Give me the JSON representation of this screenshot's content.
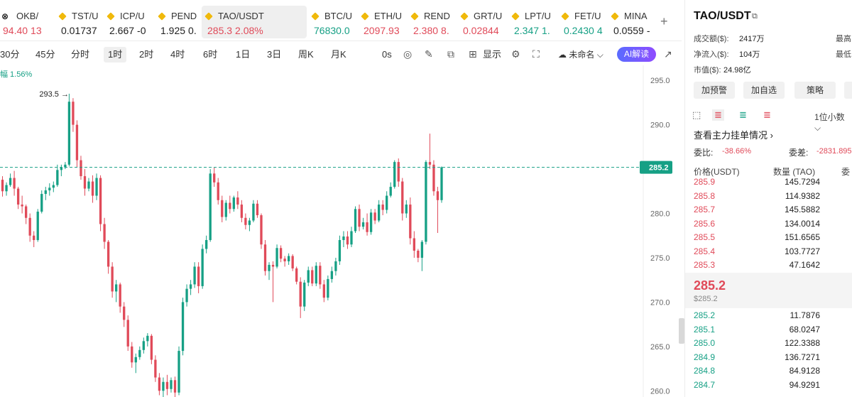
{
  "tickers": [
    {
      "name": "OKB/",
      "price": "94.40",
      "change": "13",
      "price_color": "down",
      "icon": "okx-icon",
      "left": -4,
      "width": 80,
      "clip": true
    },
    {
      "name": "TST/U",
      "price": "0.01737",
      "change": "",
      "price_color": "neutral",
      "icon": "binance-icon"
    },
    {
      "name": "ICP/U",
      "price": "2.667",
      "change": "-0",
      "price_color": "neutral",
      "icon": "binance-icon"
    },
    {
      "name": "PEND",
      "price": "1.925",
      "change": "0.",
      "price_color": "neutral",
      "icon": "binance-icon"
    },
    {
      "name": "TAO/USDT",
      "price": "285.3",
      "change": "2.08%",
      "price_color": "down",
      "icon": "binance-icon"
    },
    {
      "name": "BTC/U",
      "price": "76830.0",
      "change": "",
      "price_color": "up",
      "icon": "binance-icon"
    },
    {
      "name": "ETH/U",
      "price": "2097.93",
      "change": "",
      "price_color": "down",
      "icon": "binance-icon"
    },
    {
      "name": "REND",
      "price": "2.380",
      "change": "8.",
      "price_color": "down",
      "icon": "binance-icon"
    },
    {
      "name": "GRT/U",
      "price": "0.02844",
      "change": "",
      "price_color": "down",
      "icon": "binance-icon"
    },
    {
      "name": "LPT/U",
      "price": "2.347",
      "change": "1.",
      "price_color": "up",
      "icon": "binance-icon"
    },
    {
      "name": "FET/U",
      "price": "0.2430",
      "change": "4",
      "price_color": "up",
      "icon": "binance-icon"
    },
    {
      "name": "MINA",
      "price": "0.0559",
      "change": "-",
      "price_color": "neutral",
      "icon": "binance-icon"
    }
  ],
  "ticker_add": "+",
  "timeframes": [
    "30分",
    "45分",
    "分时",
    "1时",
    "2时",
    "4时",
    "6时",
    "1日",
    "3日",
    "周K",
    "月K"
  ],
  "active_timeframe": "1时",
  "toolbar": {
    "interval": "0s",
    "display": "显示",
    "unnamed": "未命名",
    "ai": "AI解读"
  },
  "change_label": "幅 1.56%",
  "chart_data": {
    "type": "candlestick",
    "y_ticks": [
      "295.0",
      "290.0",
      "285.0",
      "280.0",
      "275.0",
      "270.0",
      "265.0",
      "260.0"
    ],
    "ylim": [
      259.3,
      296.7
    ],
    "current_price": "285.2",
    "high_marker": "293.5",
    "candles": [
      [
        284.0,
        284.5,
        283.0,
        283.8
      ],
      [
        283.8,
        284.2,
        281.9,
        282.5
      ],
      [
        282.5,
        283.5,
        282.0,
        283.2
      ],
      [
        283.2,
        284.5,
        283.0,
        284.0
      ],
      [
        284.0,
        284.8,
        282.0,
        282.8
      ],
      [
        282.8,
        283.0,
        280.5,
        281.0
      ],
      [
        281.0,
        282.0,
        280.0,
        280.8
      ],
      [
        280.8,
        281.0,
        278.8,
        279.5
      ],
      [
        279.5,
        280.0,
        276.8,
        277.5
      ],
      [
        277.5,
        278.0,
        276.2,
        277.0
      ],
      [
        277.0,
        280.5,
        276.8,
        280.2
      ],
      [
        280.2,
        282.6,
        280.0,
        282.2
      ],
      [
        282.2,
        283.0,
        281.5,
        282.6
      ],
      [
        282.6,
        283.4,
        282.0,
        282.9
      ],
      [
        282.9,
        283.6,
        282.4,
        283.2
      ],
      [
        283.2,
        285.5,
        283.0,
        284.9
      ],
      [
        284.9,
        285.5,
        284.2,
        285.2
      ],
      [
        285.2,
        285.8,
        285.0,
        285.5
      ],
      [
        285.5,
        293.5,
        285.3,
        292.6
      ],
      [
        292.6,
        293.0,
        289.2,
        290.0
      ],
      [
        290.0,
        290.5,
        285.2,
        286.0
      ],
      [
        286.0,
        286.5,
        283.8,
        284.2
      ],
      [
        284.2,
        285.0,
        282.0,
        282.8
      ],
      [
        282.8,
        284.0,
        282.5,
        283.6
      ],
      [
        283.6,
        284.3,
        281.2,
        282.0
      ],
      [
        282.0,
        284.5,
        281.5,
        284.0
      ],
      [
        284.0,
        284.3,
        278.0,
        278.8
      ],
      [
        278.8,
        279.5,
        276.0,
        276.8
      ],
      [
        276.8,
        277.0,
        273.2,
        274.0
      ],
      [
        274.0,
        274.5,
        270.5,
        271.2
      ],
      [
        271.2,
        272.5,
        270.0,
        272.0
      ],
      [
        272.0,
        272.2,
        268.8,
        269.5
      ],
      [
        269.5,
        270.0,
        267.2,
        268.0
      ],
      [
        268.0,
        268.5,
        264.5,
        265.0
      ],
      [
        265.0,
        265.5,
        262.6,
        263.2
      ],
      [
        263.2,
        264.2,
        262.0,
        263.8
      ],
      [
        263.8,
        265.0,
        263.5,
        264.6
      ],
      [
        264.6,
        266.0,
        264.2,
        265.6
      ],
      [
        265.6,
        266.5,
        265.0,
        266.2
      ],
      [
        266.2,
        266.4,
        263.0,
        263.5
      ],
      [
        263.5,
        264.0,
        261.0,
        261.5
      ],
      [
        261.5,
        262.0,
        259.5,
        260.0
      ],
      [
        260.0,
        261.5,
        259.2,
        261.0
      ],
      [
        261.0,
        261.8,
        259.5,
        260.2
      ],
      [
        260.2,
        261.5,
        259.8,
        261.2
      ],
      [
        261.2,
        261.6,
        259.3,
        259.8
      ],
      [
        259.8,
        265.0,
        259.5,
        264.5
      ],
      [
        264.5,
        270.5,
        264.0,
        270.0
      ],
      [
        270.0,
        272.0,
        269.5,
        271.5
      ],
      [
        271.5,
        272.5,
        270.8,
        272.0
      ],
      [
        272.0,
        274.5,
        271.6,
        274.0
      ],
      [
        274.0,
        274.5,
        271.0,
        271.8
      ],
      [
        271.8,
        276.5,
        271.5,
        276.0
      ],
      [
        276.0,
        277.5,
        275.5,
        277.0
      ],
      [
        277.0,
        285.0,
        276.8,
        284.5
      ],
      [
        284.5,
        285.2,
        283.0,
        283.5
      ],
      [
        283.5,
        284.0,
        281.0,
        281.5
      ],
      [
        281.5,
        282.0,
        279.0,
        279.6
      ],
      [
        279.6,
        281.5,
        279.2,
        281.2
      ],
      [
        281.2,
        282.0,
        280.0,
        280.5
      ],
      [
        280.5,
        282.0,
        280.2,
        281.8
      ],
      [
        281.8,
        282.5,
        280.5,
        281.0
      ],
      [
        281.0,
        281.5,
        279.0,
        279.5
      ],
      [
        279.5,
        280.0,
        278.2,
        278.7
      ],
      [
        278.7,
        279.5,
        278.0,
        279.2
      ],
      [
        279.2,
        281.5,
        279.0,
        281.1
      ],
      [
        281.1,
        281.5,
        279.5,
        279.8
      ],
      [
        279.8,
        280.0,
        276.0,
        276.5
      ],
      [
        276.5,
        277.0,
        273.0,
        273.5
      ],
      [
        273.5,
        274.5,
        272.5,
        274.2
      ],
      [
        274.2,
        274.6,
        270.0,
        274.0
      ],
      [
        274.0,
        276.5,
        273.8,
        276.1
      ],
      [
        276.1,
        276.4,
        274.5,
        274.9
      ],
      [
        274.9,
        275.2,
        274.0,
        274.6
      ],
      [
        274.6,
        275.5,
        274.2,
        275.2
      ],
      [
        275.2,
        275.4,
        273.5,
        273.8
      ],
      [
        273.8,
        274.0,
        272.0,
        272.3
      ],
      [
        272.3,
        272.8,
        268.2,
        269.5
      ],
      [
        269.5,
        272.5,
        269.0,
        272.2
      ],
      [
        272.2,
        274.0,
        271.8,
        273.6
      ],
      [
        273.6,
        274.0,
        271.8,
        272.1
      ],
      [
        272.1,
        274.5,
        271.8,
        274.1
      ],
      [
        274.1,
        274.5,
        271.5,
        272.0
      ],
      [
        272.0,
        272.5,
        270.0,
        270.5
      ],
      [
        270.5,
        273.0,
        270.2,
        272.6
      ],
      [
        272.6,
        274.0,
        272.2,
        273.5
      ],
      [
        273.5,
        275.0,
        273.0,
        274.6
      ],
      [
        274.6,
        277.5,
        274.2,
        277.0
      ],
      [
        277.0,
        278.0,
        276.2,
        277.4
      ],
      [
        277.4,
        278.0,
        276.0,
        276.5
      ],
      [
        276.5,
        278.5,
        276.2,
        278.0
      ],
      [
        278.0,
        280.8,
        277.8,
        280.5
      ],
      [
        280.5,
        281.0,
        278.0,
        278.5
      ],
      [
        278.5,
        279.5,
        278.2,
        279.0
      ],
      [
        279.0,
        280.0,
        277.5,
        277.9
      ],
      [
        277.9,
        280.5,
        277.6,
        280.1
      ],
      [
        280.1,
        280.5,
        278.8,
        279.2
      ],
      [
        279.2,
        281.5,
        279.0,
        281.0
      ],
      [
        281.0,
        281.5,
        279.8,
        280.4
      ],
      [
        280.4,
        282.5,
        280.0,
        282.0
      ],
      [
        282.0,
        283.5,
        281.8,
        283.0
      ],
      [
        283.0,
        286.0,
        282.8,
        285.8
      ],
      [
        285.8,
        286.2,
        283.0,
        283.6
      ],
      [
        283.6,
        284.0,
        279.2,
        280.0
      ],
      [
        280.0,
        281.5,
        279.5,
        281.0
      ],
      [
        281.0,
        281.8,
        276.5,
        277.2
      ],
      [
        277.2,
        278.0,
        275.0,
        275.8
      ],
      [
        275.8,
        276.0,
        274.5,
        275.0
      ],
      [
        275.0,
        277.0,
        273.5,
        276.8
      ],
      [
        276.8,
        286.0,
        276.5,
        285.8
      ],
      [
        285.8,
        289.0,
        285.0,
        285.5
      ],
      [
        285.5,
        286.0,
        282.0,
        282.5
      ],
      [
        282.5,
        283.0,
        277.8,
        281.5
      ],
      [
        281.5,
        285.3,
        281.2,
        285.2
      ]
    ]
  },
  "right_panel": {
    "pair": "TAO/USDT",
    "stats": [
      {
        "label": "成交额($):",
        "value": "2417万",
        "color": "neutral",
        "right": "最高"
      },
      {
        "label": "净流入($):",
        "value": "104万",
        "color": "up",
        "right": "最低"
      },
      {
        "label": "市值($):",
        "value": "24.98亿",
        "color": "neutral",
        "right": ""
      }
    ],
    "buttons": [
      "加预警",
      "加自选",
      "策略"
    ],
    "decimals": "1位小数",
    "book_link": "查看主力挂单情况",
    "ratio_label": "委比:",
    "ratio_value": "-38.66%",
    "diff_label": "委差:",
    "diff_value": "-2831.895",
    "col_price": "价格(USDT)",
    "col_qty": "数量 (TAO)",
    "col_extra": "委",
    "asks": [
      {
        "price": "285.9",
        "qty": "145.7294"
      },
      {
        "price": "285.8",
        "qty": "114.9382"
      },
      {
        "price": "285.7",
        "qty": "145.5882"
      },
      {
        "price": "285.6",
        "qty": "134.0014"
      },
      {
        "price": "285.5",
        "qty": "151.6565"
      },
      {
        "price": "285.4",
        "qty": "103.7727"
      },
      {
        "price": "285.3",
        "qty": "47.1642"
      }
    ],
    "mid_price": "285.2",
    "mid_usd": "$285.2",
    "bids": [
      {
        "price": "285.2",
        "qty": "11.7876"
      },
      {
        "price": "285.1",
        "qty": "68.0247"
      },
      {
        "price": "285.0",
        "qty": "122.3388"
      },
      {
        "price": "284.9",
        "qty": "136.7271"
      },
      {
        "price": "284.8",
        "qty": "84.9128"
      },
      {
        "price": "284.7",
        "qty": "94.9291"
      }
    ]
  },
  "colors": {
    "up": "#16a085",
    "down": "#e04a59"
  }
}
